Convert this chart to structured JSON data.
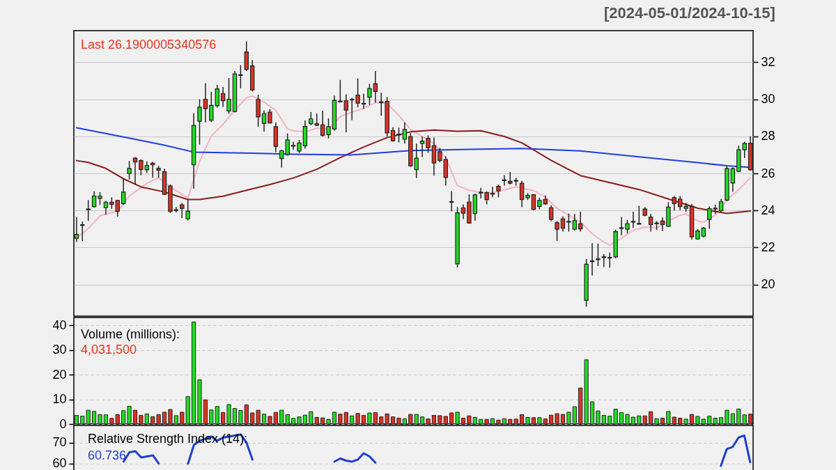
{
  "chart_data": [
    {
      "type": "candlestick",
      "subtitle": "[2024-05-01/2024-10-15]",
      "categories": [
        null,
        null,
        null,
        null,
        null,
        null,
        null,
        null,
        null,
        null,
        null,
        null,
        null,
        null,
        null,
        null,
        null,
        null,
        null,
        null,
        null,
        null,
        null,
        null,
        null,
        null,
        null,
        null,
        null,
        null,
        null,
        null,
        null,
        null,
        null,
        null,
        null,
        null,
        null,
        null,
        null,
        null,
        null,
        null,
        null,
        null,
        null,
        null,
        null,
        null,
        null,
        null,
        null,
        null,
        null,
        null,
        null,
        null,
        null,
        null,
        null,
        null,
        null,
        null,
        null,
        null,
        null,
        null,
        null,
        null,
        null,
        null,
        null,
        null,
        null,
        null,
        null,
        null,
        null,
        null,
        null,
        null,
        null,
        null,
        null,
        null,
        null,
        null,
        null,
        null,
        null,
        null,
        null,
        null,
        null,
        null,
        null,
        null,
        null,
        null,
        null,
        null,
        null,
        null,
        null,
        null,
        null,
        null,
        null,
        null,
        null,
        null,
        null,
        null,
        null,
        null
      ],
      "ohlc": [
        [
          22.5,
          23.63,
          22.3,
          22.71
        ],
        [
          23.19,
          23.4,
          22.34,
          23.23
        ],
        [
          24.04,
          24.56,
          23.44,
          24.08
        ],
        [
          24.21,
          25.03,
          24.15,
          24.78
        ],
        [
          24.65,
          24.99,
          24.3,
          24.78
        ],
        [
          24.15,
          24.52,
          23.78,
          24.45
        ],
        [
          24.45,
          24.71,
          24.09,
          24.33
        ],
        [
          24.54,
          24.56,
          23.67,
          23.96
        ],
        [
          24.37,
          25.74,
          24.3,
          24.99
        ],
        [
          25.99,
          26.67,
          25.67,
          26.27
        ],
        [
          26.82,
          26.87,
          25.42,
          26.61
        ],
        [
          26.69,
          26.76,
          25.9,
          26.21
        ],
        [
          26.19,
          26.65,
          26.02,
          26.42
        ],
        [
          26.55,
          26.62,
          25.77,
          26.46
        ],
        [
          26.27,
          26.4,
          25.77,
          26.17
        ],
        [
          26.09,
          26.25,
          24.84,
          24.87
        ],
        [
          25.32,
          25.4,
          23.87,
          23.96
        ],
        [
          24.0,
          24.19,
          23.9,
          24.04
        ],
        [
          24.31,
          24.4,
          23.59,
          24.11
        ],
        [
          23.55,
          24.56,
          23.46,
          23.97
        ],
        [
          26.46,
          29.24,
          25.17,
          28.59
        ],
        [
          28.81,
          30.0,
          27.55,
          29.57
        ],
        [
          30.0,
          30.86,
          28.75,
          29.49
        ],
        [
          28.87,
          30.4,
          28.77,
          29.67
        ],
        [
          29.65,
          30.77,
          29.55,
          30.56
        ],
        [
          30.31,
          30.67,
          29.59,
          29.92
        ],
        [
          29.37,
          31.15,
          29.21,
          30.0
        ],
        [
          29.34,
          31.52,
          29.3,
          31.37
        ],
        [
          31.28,
          31.84,
          30.59,
          31.32
        ],
        [
          32.55,
          33.12,
          31.52,
          31.61
        ],
        [
          31.8,
          32.11,
          30.42,
          30.5
        ],
        [
          29.99,
          30.24,
          28.52,
          29.05
        ],
        [
          28.7,
          29.4,
          28.24,
          29.22
        ],
        [
          29.3,
          29.46,
          28.71,
          28.72
        ],
        [
          28.52,
          28.75,
          27.15,
          27.46
        ],
        [
          26.8,
          27.27,
          26.31,
          27.22
        ],
        [
          27.02,
          28.15,
          26.96,
          27.81
        ],
        [
          27.47,
          27.71,
          27.27,
          27.51
        ],
        [
          27.21,
          27.8,
          27.11,
          27.64
        ],
        [
          27.49,
          28.85,
          27.33,
          28.53
        ],
        [
          28.68,
          29.31,
          28.6,
          28.94
        ],
        [
          28.68,
          29.23,
          28.56,
          28.6
        ],
        [
          28.62,
          29.38,
          27.99,
          28.05
        ],
        [
          28.09,
          28.97,
          27.89,
          28.52
        ],
        [
          28.39,
          30.2,
          28.3,
          29.94
        ],
        [
          29.9,
          31.04,
          29.82,
          29.86
        ],
        [
          29.91,
          30.26,
          28.22,
          29.41
        ],
        [
          29.96,
          30.07,
          28.87,
          30.0
        ],
        [
          30.22,
          31.12,
          29.57,
          29.79
        ],
        [
          29.78,
          30.3,
          29.48,
          29.74
        ],
        [
          30.11,
          30.83,
          29.69,
          30.58
        ],
        [
          30.84,
          31.52,
          29.82,
          30.42
        ],
        [
          29.86,
          30.36,
          29.12,
          29.82
        ],
        [
          29.88,
          30.11,
          27.99,
          28.18
        ],
        [
          28.31,
          28.49,
          27.71,
          27.76
        ],
        [
          28.11,
          28.47,
          27.67,
          28.07
        ],
        [
          27.84,
          28.75,
          27.61,
          28.37
        ],
        [
          27.99,
          28.18,
          26.35,
          26.41
        ],
        [
          26.2,
          27.61,
          25.75,
          26.82
        ],
        [
          27.61,
          27.99,
          26.88,
          27.74
        ],
        [
          27.89,
          28.05,
          27.11,
          27.38
        ],
        [
          27.49,
          27.93,
          25.88,
          26.56
        ],
        [
          27.17,
          27.38,
          26.6,
          26.7
        ],
        [
          26.75,
          26.92,
          25.34,
          25.78
        ],
        [
          24.48,
          25.03,
          23.95,
          24.44
        ],
        [
          21.12,
          24.18,
          20.93,
          23.87
        ],
        [
          24.14,
          24.33,
          23.54,
          23.85
        ],
        [
          24.46,
          24.86,
          23.29,
          23.32
        ],
        [
          23.83,
          24.9,
          23.45,
          24.84
        ],
        [
          24.94,
          25.22,
          24.65,
          24.98
        ],
        [
          24.96,
          25.03,
          24.33,
          24.59
        ],
        [
          24.88,
          25.28,
          24.71,
          24.92
        ],
        [
          25.3,
          25.4,
          24.71,
          25.06
        ],
        [
          25.61,
          25.91,
          25.34,
          25.65
        ],
        [
          25.57,
          26.07,
          25.4,
          25.47
        ],
        [
          25.62,
          25.76,
          25.34,
          25.58
        ],
        [
          25.47,
          25.6,
          24.18,
          24.59
        ],
        [
          24.69,
          24.94,
          24.56,
          24.81
        ],
        [
          24.85,
          24.88,
          24.0,
          24.06
        ],
        [
          24.22,
          24.69,
          24.06,
          24.54
        ],
        [
          24.6,
          24.81,
          24.31,
          24.35
        ],
        [
          24.15,
          24.27,
          23.43,
          23.52
        ],
        [
          23.34,
          23.43,
          22.36,
          22.99
        ],
        [
          23.55,
          23.68,
          22.86,
          23.05
        ],
        [
          23.37,
          23.83,
          22.86,
          23.41
        ],
        [
          22.99,
          23.81,
          22.92,
          23.45
        ],
        [
          23.28,
          23.93,
          22.86,
          23.01
        ],
        [
          19.15,
          21.38,
          18.81,
          21.1
        ],
        [
          21.24,
          22.23,
          20.49,
          21.28
        ],
        [
          21.35,
          22.21,
          21.0,
          21.39
        ],
        [
          21.46,
          21.64,
          20.95,
          21.5
        ],
        [
          21.43,
          21.73,
          20.91,
          21.47
        ],
        [
          21.5,
          22.96,
          21.41,
          22.86
        ],
        [
          23.03,
          23.64,
          22.67,
          23.07
        ],
        [
          22.99,
          23.49,
          22.76,
          23.28
        ],
        [
          23.37,
          23.93,
          23.05,
          23.41
        ],
        [
          23.26,
          24.25,
          23.24,
          23.3
        ],
        [
          24.08,
          24.18,
          23.68,
          23.74
        ],
        [
          23.64,
          23.81,
          22.86,
          23.24
        ],
        [
          23.28,
          23.43,
          22.96,
          23.32
        ],
        [
          23.43,
          23.62,
          22.89,
          23.24
        ],
        [
          23.15,
          24.44,
          23.11,
          24.18
        ],
        [
          24.69,
          24.78,
          24.0,
          24.37
        ],
        [
          24.62,
          24.78,
          24.02,
          24.22
        ],
        [
          24.12,
          24.4,
          23.93,
          24.22
        ],
        [
          24.22,
          24.35,
          22.42,
          22.58
        ],
        [
          22.46,
          22.99,
          22.42,
          22.9
        ],
        [
          22.61,
          23.11,
          22.55,
          23.05
        ],
        [
          23.52,
          24.22,
          23.01,
          24.1
        ],
        [
          24.08,
          24.31,
          23.81,
          24.12
        ],
        [
          23.99,
          24.62,
          23.93,
          24.47
        ],
        [
          24.56,
          26.39,
          24.5,
          26.26
        ],
        [
          25.48,
          26.32,
          25.0,
          26.26
        ],
        [
          26.11,
          27.5,
          26.07,
          27.27
        ],
        [
          27.27,
          27.71,
          26.83,
          27.62
        ],
        [
          27.62,
          28.0,
          26.14,
          26.19
        ]
      ],
      "colors": [
        "#22dd22",
        "#22dd22",
        "#22dd22",
        "#22dd22",
        "#22dd22",
        "#22dd22",
        "#dd3322",
        "#dd3322",
        "#22dd22",
        "#22dd22",
        "#dd3322",
        "#dd3322",
        "#22dd22",
        "#dd3322",
        "#dd3322",
        "#dd3322",
        "#dd3322",
        "#22dd22",
        "#dd3322",
        "#22dd22",
        "#22dd22",
        "#22dd22",
        "#dd3322",
        "#22dd22",
        "#22dd22",
        "#dd3322",
        "#22dd22",
        "#22dd22",
        "#22dd22",
        "#dd3322",
        "#dd3322",
        "#dd3322",
        "#22dd22",
        "#dd3322",
        "#dd3322",
        "#22dd22",
        "#22dd22",
        "#22dd22",
        "#22dd22",
        "#22dd22",
        "#22dd22",
        "#dd3322",
        "#dd3322",
        "#22dd22",
        "#22dd22",
        "#dd3322",
        "#dd3322",
        "#22dd22",
        "#dd3322",
        "#dd3322",
        "#22dd22",
        "#dd3322",
        "#dd3322",
        "#dd3322",
        "#dd3322",
        "#dd3322",
        "#22dd22",
        "#dd3322",
        "#22dd22",
        "#22dd22",
        "#dd3322",
        "#dd3322",
        "#dd3322",
        "#dd3322",
        "#dd3322",
        "#22dd22",
        "#dd3322",
        "#dd3322",
        "#22dd22",
        "#22dd22",
        "#dd3322",
        "#22dd22",
        "#dd3322",
        "#22dd22",
        "#dd3322",
        "#dd3322",
        "#dd3322",
        "#22dd22",
        "#dd3322",
        "#22dd22",
        "#dd3322",
        "#dd3322",
        "#dd3322",
        "#dd3322",
        "#22dd22",
        "#22dd22",
        "#dd3322",
        "#22dd22",
        "#22dd22",
        "#22dd22",
        "#22dd22",
        "#22dd22",
        "#22dd22",
        "#22dd22",
        "#22dd22",
        "#22dd22",
        "#22dd22",
        "#dd3322",
        "#dd3322",
        "#22dd22",
        "#dd3322",
        "#22dd22",
        "#dd3322",
        "#dd3322",
        "#22dd22",
        "#dd3322",
        "#22dd22",
        "#22dd22",
        "#22dd22",
        "#22dd22",
        "#22dd22",
        "#22dd22",
        "#22dd22",
        "#22dd22",
        "#22dd22",
        "#dd3322"
      ],
      "series": [
        {
          "type": "line",
          "color": "#f4b3c2",
          "values": [
            22.52,
            null,
            23.02,
            null,
            23.71,
            null,
            null,
            23.96,
            null,
            24.78,
            null,
            null,
            25.46,
            null,
            25.77,
            null,
            25.27,
            null,
            null,
            24.67,
            null,
            26.65,
            null,
            28.02,
            null,
            28.65,
            null,
            29.4,
            null,
            30.09,
            30.18,
            null,
            29.84,
            null,
            29.4,
            null,
            28.4,
            28.3,
            null,
            28.24,
            null,
            28.43,
            null,
            28.39,
            null,
            29.06,
            null,
            29.31,
            null,
            29.5,
            null,
            29.82,
            null,
            29.78,
            null,
            29.12,
            null,
            28.37,
            null,
            27.99,
            null,
            27.61,
            null,
            26.85,
            null,
            25.34,
            null,
            25.09,
            null,
            24.99,
            null,
            24.96,
            null,
            25.11,
            null,
            25.28,
            25.2,
            null,
            25.07,
            null,
            24.73,
            null,
            24.12,
            null,
            23.74,
            null,
            23.37,
            null,
            22.74,
            null,
            22.29,
            22.13,
            null,
            22.5,
            null,
            22.92,
            null,
            23.11,
            null,
            23.05,
            null,
            23.43,
            null,
            23.74,
            23.81,
            null,
            23.43,
            23.37,
            null,
            23.74,
            null,
            24.56,
            null,
            25.13,
            null,
            25.76
          ]
        },
        {
          "type": "line",
          "color": "#8b1a1a",
          "values": [
            26.69,
            null,
            26.59,
            null,
            null,
            26.27,
            null,
            null,
            25.71,
            null,
            null,
            25.27,
            null,
            null,
            null,
            25.0,
            null,
            null,
            null,
            24.59,
            null,
            24.59,
            null,
            null,
            null,
            24.77,
            null,
            null,
            null,
            25.09,
            null,
            null,
            null,
            25.4,
            null,
            null,
            null,
            25.75,
            null,
            null,
            null,
            26.22,
            null,
            null,
            null,
            26.85,
            null,
            null,
            null,
            27.42,
            null,
            null,
            null,
            27.93,
            null,
            null,
            null,
            28.24,
            null,
            null,
            null,
            28.34,
            null,
            null,
            null,
            28.27,
            null,
            null,
            null,
            28.3,
            null,
            null,
            null,
            27.99,
            null,
            null,
            27.65,
            null,
            null,
            null,
            null,
            26.7,
            null,
            null,
            null,
            null,
            25.88,
            null,
            null,
            null,
            null,
            25.5,
            null,
            null,
            null,
            null,
            25.13,
            null,
            null,
            null,
            null,
            24.62,
            null,
            null,
            null,
            null,
            24.12,
            null,
            null,
            null,
            null,
            23.84,
            null,
            null,
            null,
            23.97
          ]
        },
        {
          "type": "line",
          "color": "#1c3fe0",
          "values": [
            28.46,
            null,
            null,
            null,
            null,
            28.15,
            null,
            null,
            null,
            null,
            27.84,
            null,
            null,
            null,
            null,
            27.52,
            null,
            null,
            null,
            null,
            27.15,
            null,
            null,
            null,
            null,
            null,
            null,
            null,
            null,
            null,
            27.09,
            null,
            null,
            null,
            null,
            null,
            null,
            27.03,
            null,
            null,
            null,
            null,
            null,
            null,
            null,
            null,
            null,
            27.0,
            null,
            null,
            null,
            null,
            null,
            null,
            null,
            null,
            null,
            27.23,
            null,
            null,
            null,
            null,
            null,
            null,
            null,
            null,
            null,
            27.3,
            null,
            null,
            null,
            null,
            null,
            null,
            null,
            null,
            27.34,
            null,
            null,
            null,
            null,
            null,
            null,
            null,
            null,
            null,
            27.21,
            null,
            null,
            null,
            null,
            null,
            null,
            null,
            null,
            null,
            26.89,
            null,
            null,
            null,
            null,
            null,
            null,
            null,
            null,
            null,
            26.58,
            null,
            null,
            null,
            null,
            26.41,
            null,
            null,
            null,
            26.32
          ]
        }
      ],
      "ylim": [
        18.3,
        33.7
      ],
      "yticks": [
        20,
        22,
        24,
        26,
        28,
        30,
        32
      ],
      "grid": "y",
      "tick_labels": "y",
      "annotations": [
        "Last 26.1900005340576"
      ]
    },
    {
      "type": "bar",
      "categories": [
        null,
        null,
        null,
        null,
        null,
        null,
        null,
        null,
        null,
        null,
        null,
        null,
        null,
        null,
        null,
        null,
        null,
        null,
        null,
        null,
        null,
        null,
        null,
        null,
        null,
        null,
        null,
        null,
        null,
        null,
        null,
        null,
        null,
        null,
        null,
        null,
        null,
        null,
        null,
        null,
        null,
        null,
        null,
        null,
        null,
        null,
        null,
        null,
        null,
        null,
        null,
        null,
        null,
        null,
        null,
        null,
        null,
        null,
        null,
        null,
        null,
        null,
        null,
        null,
        null,
        null,
        null,
        null,
        null,
        null,
        null,
        null,
        null,
        null,
        null,
        null,
        null,
        null,
        null,
        null,
        null,
        null,
        null,
        null,
        null,
        null,
        null,
        null,
        null,
        null,
        null,
        null,
        null,
        null,
        null,
        null,
        null,
        null,
        null,
        null,
        null,
        null,
        null,
        null,
        null,
        null,
        null,
        null,
        null,
        null,
        null,
        null,
        null,
        null,
        null,
        null
      ],
      "values": [
        3.5,
        3.2,
        5.6,
        5.1,
        3.8,
        3.7,
        2.3,
        3.8,
        5.4,
        7.2,
        5.6,
        3.5,
        4.1,
        3.0,
        3.8,
        4.8,
        5.9,
        3.4,
        4.8,
        11.1,
        41.3,
        17.9,
        9.8,
        5.7,
        7.1,
        4.7,
        7.9,
        6.3,
        5.5,
        7.8,
        4.5,
        5.6,
        4.0,
        3.1,
        4.7,
        5.6,
        3.8,
        2.3,
        2.9,
        3.6,
        5.0,
        2.7,
        2.5,
        1.9,
        4.8,
        4.0,
        4.7,
        3.3,
        4.3,
        3.5,
        4.5,
        4.6,
        2.9,
        4.1,
        2.9,
        2.4,
        2.1,
        3.9,
        3.9,
        2.9,
        2.1,
        3.5,
        3.4,
        3.1,
        4.5,
        4.8,
        2.4,
        3.3,
        2.7,
        1.9,
        1.9,
        2.2,
        1.6,
        2.1,
        1.9,
        2.0,
        3.8,
        2.7,
        2.6,
        2.6,
        2.1,
        3.6,
        4.2,
        3.9,
        4.8,
        7.0,
        14.6,
        26.0,
        9.0,
        5.3,
        3.5,
        3.2,
        6.0,
        4.6,
        3.9,
        2.8,
        3.3,
        3.3,
        5.0,
        2.2,
        2.4,
        5.1,
        2.8,
        2.4,
        2.0,
        3.9,
        3.1,
        2.0,
        3.2,
        2.4,
        2.6,
        5.6,
        4.2,
        6.1,
        3.7,
        4.03
      ],
      "colors": [
        "#22dd22",
        "#22dd22",
        "#22dd22",
        "#22dd22",
        "#22dd22",
        "#22dd22",
        "#dd3322",
        "#dd3322",
        "#22dd22",
        "#22dd22",
        "#dd3322",
        "#dd3322",
        "#22dd22",
        "#dd3322",
        "#dd3322",
        "#dd3322",
        "#dd3322",
        "#22dd22",
        "#dd3322",
        "#22dd22",
        "#22dd22",
        "#22dd22",
        "#dd3322",
        "#22dd22",
        "#22dd22",
        "#dd3322",
        "#22dd22",
        "#22dd22",
        "#22dd22",
        "#dd3322",
        "#dd3322",
        "#dd3322",
        "#22dd22",
        "#dd3322",
        "#dd3322",
        "#22dd22",
        "#22dd22",
        "#22dd22",
        "#22dd22",
        "#22dd22",
        "#22dd22",
        "#dd3322",
        "#dd3322",
        "#22dd22",
        "#22dd22",
        "#dd3322",
        "#dd3322",
        "#22dd22",
        "#dd3322",
        "#dd3322",
        "#22dd22",
        "#dd3322",
        "#dd3322",
        "#dd3322",
        "#dd3322",
        "#dd3322",
        "#22dd22",
        "#dd3322",
        "#22dd22",
        "#22dd22",
        "#dd3322",
        "#dd3322",
        "#dd3322",
        "#dd3322",
        "#dd3322",
        "#22dd22",
        "#dd3322",
        "#dd3322",
        "#22dd22",
        "#22dd22",
        "#dd3322",
        "#22dd22",
        "#dd3322",
        "#22dd22",
        "#dd3322",
        "#dd3322",
        "#dd3322",
        "#22dd22",
        "#dd3322",
        "#22dd22",
        "#dd3322",
        "#dd3322",
        "#dd3322",
        "#dd3322",
        "#22dd22",
        "#22dd22",
        "#dd3322",
        "#22dd22",
        "#22dd22",
        "#22dd22",
        "#22dd22",
        "#22dd22",
        "#22dd22",
        "#22dd22",
        "#22dd22",
        "#22dd22",
        "#22dd22",
        "#dd3322",
        "#dd3322",
        "#22dd22",
        "#dd3322",
        "#22dd22",
        "#dd3322",
        "#dd3322",
        "#22dd22",
        "#dd3322",
        "#22dd22",
        "#22dd22",
        "#22dd22",
        "#22dd22",
        "#22dd22",
        "#22dd22",
        "#22dd22",
        "#22dd22",
        "#22dd22",
        "#dd3322"
      ],
      "ylim": [
        0,
        43.1
      ],
      "yticks": [
        0,
        10,
        20,
        30,
        40
      ],
      "grid": "y",
      "tick_labels": "y",
      "annotations": [
        "Volume (millions):",
        "4,031,500"
      ]
    },
    {
      "type": "line",
      "categories": [
        null,
        null,
        null,
        null,
        null,
        null,
        null,
        null,
        null,
        null,
        null,
        null,
        null,
        null,
        null,
        null,
        null,
        null,
        null,
        null,
        null,
        null,
        null,
        null,
        null,
        null,
        null,
        null,
        null,
        null,
        null,
        null,
        null,
        null,
        null,
        null,
        null,
        null,
        null,
        null,
        null,
        null,
        null,
        null,
        null,
        null,
        null,
        null,
        null,
        null,
        null,
        null,
        null,
        null,
        null,
        null,
        null,
        null,
        null,
        null,
        null,
        null,
        null,
        null,
        null,
        null,
        null,
        null,
        null,
        null,
        null,
        null,
        null,
        null,
        null,
        null,
        null,
        null,
        null,
        null,
        null,
        null,
        null,
        null,
        null,
        null,
        null,
        null,
        null,
        null,
        null,
        null,
        null,
        null,
        null,
        null,
        null,
        null,
        null,
        null,
        null,
        null,
        null,
        null,
        null,
        null,
        null,
        null,
        null,
        null,
        null,
        null,
        null,
        null,
        null,
        null
      ],
      "series": [
        {
          "color": "#1f3fcc",
          "values": [
            null,
            null,
            null,
            null,
            null,
            null,
            null,
            null,
            61,
            65.5,
            66,
            63,
            63.5,
            64,
            60,
            null,
            null,
            null,
            null,
            60,
            69,
            71,
            72,
            73,
            71,
            72.5,
            73,
            73.5,
            74,
            70,
            62,
            null,
            null,
            null,
            null,
            null,
            null,
            null,
            null,
            null,
            null,
            null,
            null,
            null,
            61,
            62.5,
            61.5,
            61,
            62,
            65,
            63.5,
            60.5,
            null,
            null,
            null,
            null,
            null,
            null,
            null,
            null,
            null,
            null,
            null,
            null,
            null,
            null,
            null,
            null,
            null,
            null,
            null,
            null,
            null,
            null,
            null,
            null,
            null,
            null,
            null,
            null,
            null,
            null,
            null,
            null,
            null,
            null,
            null,
            null,
            null,
            null,
            null,
            null,
            null,
            null,
            null,
            null,
            null,
            null,
            null,
            null,
            null,
            null,
            null,
            null,
            null,
            null,
            null,
            null,
            null,
            null,
            59,
            67,
            68,
            72.5,
            73.5,
            60.736
          ]
        }
      ],
      "ylim": [
        56,
        78.3
      ],
      "yticks": [
        60,
        70
      ],
      "grid": "y",
      "tick_labels": "y",
      "annotations": [
        "Relative Strength Index (14):",
        "60.736"
      ]
    }
  ]
}
